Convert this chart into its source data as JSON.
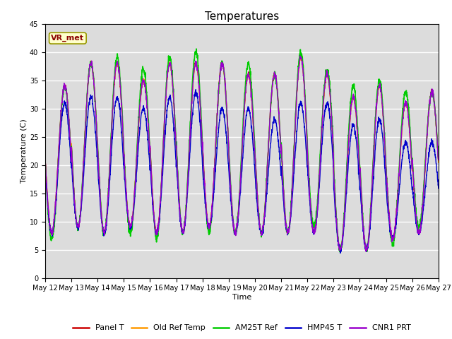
{
  "title": "Temperatures",
  "xlabel": "Time",
  "ylabel": "Temperature (C)",
  "ylim": [
    0,
    45
  ],
  "annotation_text": "VR_met",
  "bg_color": "#dcdcdc",
  "grid_color": "white",
  "series": [
    {
      "label": "Panel T",
      "color": "#cc0000",
      "lw": 1.0
    },
    {
      "label": "Old Ref Temp",
      "color": "#ff9900",
      "lw": 1.0
    },
    {
      "label": "AM25T Ref",
      "color": "#00cc00",
      "lw": 1.2
    },
    {
      "label": "HMP45 T",
      "color": "#0000cc",
      "lw": 1.0
    },
    {
      "label": "CNR1 PRT",
      "color": "#9900cc",
      "lw": 1.0
    }
  ],
  "xtick_labels": [
    "May 12",
    "May 13",
    "May 14",
    "May 15",
    "May 16",
    "May 17",
    "May 18",
    "May 19",
    "May 20",
    "May 21",
    "May 22",
    "May 23",
    "May 24",
    "May 25",
    "May 26",
    "May 27"
  ],
  "ytick_vals": [
    0,
    5,
    10,
    15,
    20,
    25,
    30,
    35,
    40,
    45
  ],
  "title_fontsize": 11,
  "axis_label_fontsize": 8,
  "tick_fontsize": 7,
  "legend_fontsize": 8,
  "annot_fontsize": 8,
  "day_mins": [
    8,
    9,
    8,
    9,
    8,
    8,
    9,
    8,
    8,
    8,
    8,
    5,
    5,
    7,
    8
  ],
  "day_maxs": [
    34,
    38,
    38,
    35,
    38,
    38,
    38,
    36,
    36,
    39,
    36,
    32,
    34,
    31,
    33
  ],
  "am25_mins": [
    7,
    9,
    8,
    8,
    7,
    8,
    8,
    8,
    8,
    8,
    9,
    5,
    5,
    6,
    9
  ],
  "am25_maxs": [
    34,
    38,
    39,
    37,
    39,
    40,
    38,
    38,
    36,
    40,
    37,
    34,
    35,
    33,
    33
  ],
  "hmp45_mins": [
    8,
    9,
    8,
    9,
    8,
    8,
    9,
    8,
    8,
    8,
    8,
    5,
    5,
    7,
    8
  ],
  "hmp45_maxs": [
    31,
    32,
    32,
    30,
    32,
    33,
    30,
    30,
    28,
    31,
    31,
    27,
    28,
    24,
    24
  ],
  "cnr1_mins": [
    8,
    9,
    8,
    9,
    8,
    8,
    9,
    8,
    8,
    8,
    8,
    5,
    5,
    7,
    8
  ],
  "cnr1_maxs": [
    34,
    38,
    38,
    35,
    38,
    38,
    38,
    36,
    36,
    39,
    36,
    32,
    34,
    31,
    33
  ]
}
